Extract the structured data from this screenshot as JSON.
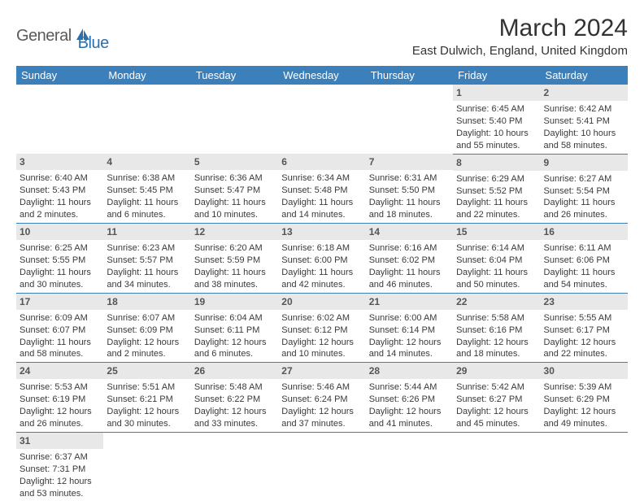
{
  "logo": {
    "part1": "General",
    "part2": "Blue"
  },
  "title": "March 2024",
  "location": "East Dulwich, England, United Kingdom",
  "weekdays": [
    "Sunday",
    "Monday",
    "Tuesday",
    "Wednesday",
    "Thursday",
    "Friday",
    "Saturday"
  ],
  "colors": {
    "header_bg": "#3b80bb",
    "header_text": "#ffffff",
    "daynum_bg": "#e8e8e8",
    "row_border": "#3b80bb",
    "logo_gray": "#5a5a5a",
    "logo_blue": "#2b6fab"
  },
  "grid": [
    [
      null,
      null,
      null,
      null,
      null,
      {
        "n": "1",
        "sunrise": "Sunrise: 6:45 AM",
        "sunset": "Sunset: 5:40 PM",
        "daylight": "Daylight: 10 hours and 55 minutes."
      },
      {
        "n": "2",
        "sunrise": "Sunrise: 6:42 AM",
        "sunset": "Sunset: 5:41 PM",
        "daylight": "Daylight: 10 hours and 58 minutes."
      }
    ],
    [
      {
        "n": "3",
        "sunrise": "Sunrise: 6:40 AM",
        "sunset": "Sunset: 5:43 PM",
        "daylight": "Daylight: 11 hours and 2 minutes."
      },
      {
        "n": "4",
        "sunrise": "Sunrise: 6:38 AM",
        "sunset": "Sunset: 5:45 PM",
        "daylight": "Daylight: 11 hours and 6 minutes."
      },
      {
        "n": "5",
        "sunrise": "Sunrise: 6:36 AM",
        "sunset": "Sunset: 5:47 PM",
        "daylight": "Daylight: 11 hours and 10 minutes."
      },
      {
        "n": "6",
        "sunrise": "Sunrise: 6:34 AM",
        "sunset": "Sunset: 5:48 PM",
        "daylight": "Daylight: 11 hours and 14 minutes."
      },
      {
        "n": "7",
        "sunrise": "Sunrise: 6:31 AM",
        "sunset": "Sunset: 5:50 PM",
        "daylight": "Daylight: 11 hours and 18 minutes."
      },
      {
        "n": "8",
        "sunrise": "Sunrise: 6:29 AM",
        "sunset": "Sunset: 5:52 PM",
        "daylight": "Daylight: 11 hours and 22 minutes."
      },
      {
        "n": "9",
        "sunrise": "Sunrise: 6:27 AM",
        "sunset": "Sunset: 5:54 PM",
        "daylight": "Daylight: 11 hours and 26 minutes."
      }
    ],
    [
      {
        "n": "10",
        "sunrise": "Sunrise: 6:25 AM",
        "sunset": "Sunset: 5:55 PM",
        "daylight": "Daylight: 11 hours and 30 minutes."
      },
      {
        "n": "11",
        "sunrise": "Sunrise: 6:23 AM",
        "sunset": "Sunset: 5:57 PM",
        "daylight": "Daylight: 11 hours and 34 minutes."
      },
      {
        "n": "12",
        "sunrise": "Sunrise: 6:20 AM",
        "sunset": "Sunset: 5:59 PM",
        "daylight": "Daylight: 11 hours and 38 minutes."
      },
      {
        "n": "13",
        "sunrise": "Sunrise: 6:18 AM",
        "sunset": "Sunset: 6:00 PM",
        "daylight": "Daylight: 11 hours and 42 minutes."
      },
      {
        "n": "14",
        "sunrise": "Sunrise: 6:16 AM",
        "sunset": "Sunset: 6:02 PM",
        "daylight": "Daylight: 11 hours and 46 minutes."
      },
      {
        "n": "15",
        "sunrise": "Sunrise: 6:14 AM",
        "sunset": "Sunset: 6:04 PM",
        "daylight": "Daylight: 11 hours and 50 minutes."
      },
      {
        "n": "16",
        "sunrise": "Sunrise: 6:11 AM",
        "sunset": "Sunset: 6:06 PM",
        "daylight": "Daylight: 11 hours and 54 minutes."
      }
    ],
    [
      {
        "n": "17",
        "sunrise": "Sunrise: 6:09 AM",
        "sunset": "Sunset: 6:07 PM",
        "daylight": "Daylight: 11 hours and 58 minutes."
      },
      {
        "n": "18",
        "sunrise": "Sunrise: 6:07 AM",
        "sunset": "Sunset: 6:09 PM",
        "daylight": "Daylight: 12 hours and 2 minutes."
      },
      {
        "n": "19",
        "sunrise": "Sunrise: 6:04 AM",
        "sunset": "Sunset: 6:11 PM",
        "daylight": "Daylight: 12 hours and 6 minutes."
      },
      {
        "n": "20",
        "sunrise": "Sunrise: 6:02 AM",
        "sunset": "Sunset: 6:12 PM",
        "daylight": "Daylight: 12 hours and 10 minutes."
      },
      {
        "n": "21",
        "sunrise": "Sunrise: 6:00 AM",
        "sunset": "Sunset: 6:14 PM",
        "daylight": "Daylight: 12 hours and 14 minutes."
      },
      {
        "n": "22",
        "sunrise": "Sunrise: 5:58 AM",
        "sunset": "Sunset: 6:16 PM",
        "daylight": "Daylight: 12 hours and 18 minutes."
      },
      {
        "n": "23",
        "sunrise": "Sunrise: 5:55 AM",
        "sunset": "Sunset: 6:17 PM",
        "daylight": "Daylight: 12 hours and 22 minutes."
      }
    ],
    [
      {
        "n": "24",
        "sunrise": "Sunrise: 5:53 AM",
        "sunset": "Sunset: 6:19 PM",
        "daylight": "Daylight: 12 hours and 26 minutes."
      },
      {
        "n": "25",
        "sunrise": "Sunrise: 5:51 AM",
        "sunset": "Sunset: 6:21 PM",
        "daylight": "Daylight: 12 hours and 30 minutes."
      },
      {
        "n": "26",
        "sunrise": "Sunrise: 5:48 AM",
        "sunset": "Sunset: 6:22 PM",
        "daylight": "Daylight: 12 hours and 33 minutes."
      },
      {
        "n": "27",
        "sunrise": "Sunrise: 5:46 AM",
        "sunset": "Sunset: 6:24 PM",
        "daylight": "Daylight: 12 hours and 37 minutes."
      },
      {
        "n": "28",
        "sunrise": "Sunrise: 5:44 AM",
        "sunset": "Sunset: 6:26 PM",
        "daylight": "Daylight: 12 hours and 41 minutes."
      },
      {
        "n": "29",
        "sunrise": "Sunrise: 5:42 AM",
        "sunset": "Sunset: 6:27 PM",
        "daylight": "Daylight: 12 hours and 45 minutes."
      },
      {
        "n": "30",
        "sunrise": "Sunrise: 5:39 AM",
        "sunset": "Sunset: 6:29 PM",
        "daylight": "Daylight: 12 hours and 49 minutes."
      }
    ],
    [
      {
        "n": "31",
        "sunrise": "Sunrise: 6:37 AM",
        "sunset": "Sunset: 7:31 PM",
        "daylight": "Daylight: 12 hours and 53 minutes."
      },
      null,
      null,
      null,
      null,
      null,
      null
    ]
  ]
}
